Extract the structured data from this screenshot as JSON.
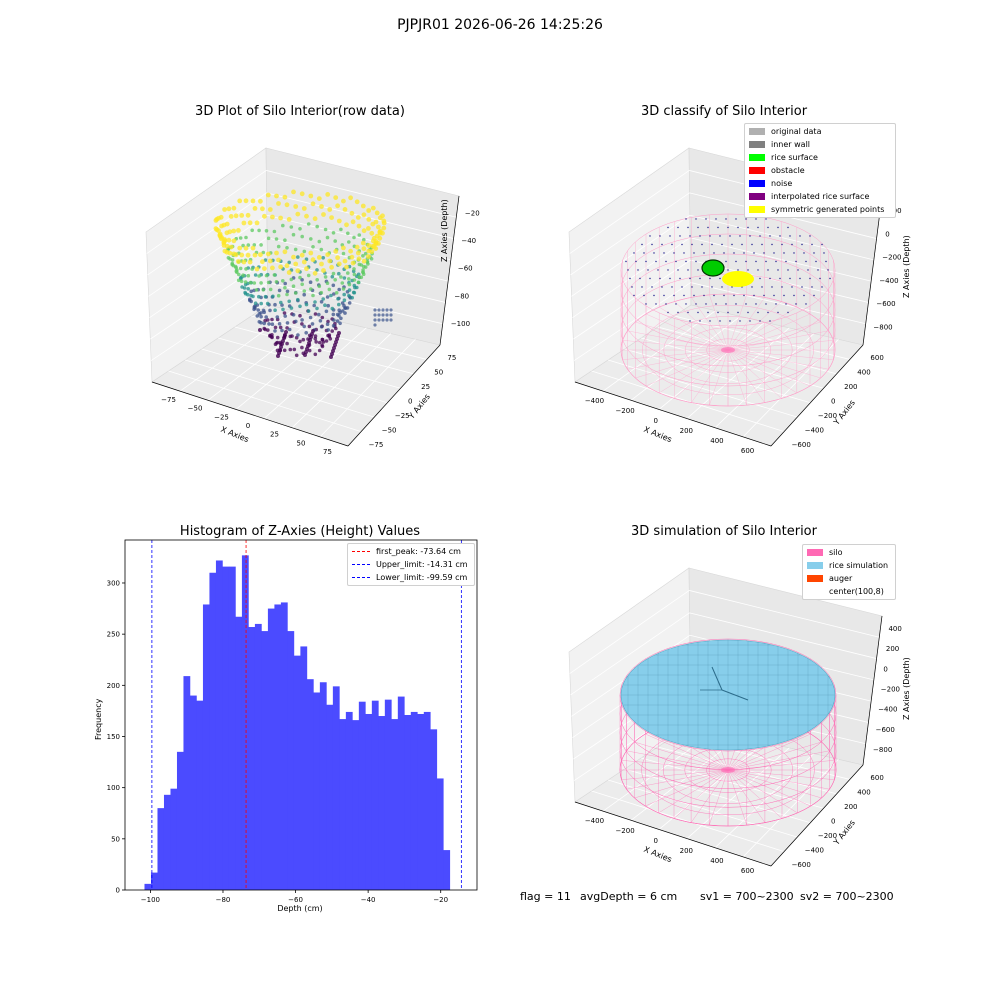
{
  "suptitle": "PJPJR01 2026-06-26 14:25:26",
  "footer": {
    "flag": "flag = 11",
    "avg_depth": "avgDepth = 6 cm",
    "sv1": "sv1 = 700~2300",
    "sv2": "sv2 = 700~2300"
  },
  "colors": {
    "hist_bar": "#4b4bff",
    "first_peak": "#ff0000",
    "limits": "#0000ff",
    "silo": "#ff69b4",
    "rice": "#87ceeb",
    "auger": "#ff4500",
    "cube_face": "#f2f2f2"
  },
  "chart_data": [
    {
      "type": "scatter",
      "projection": "3d",
      "title": "3D Plot of Silo Interior(row data)",
      "xlabel": "X Axies",
      "ylabel": "Y Axies",
      "zlabel": "Z Axies (Depth)",
      "x_ticks": [
        "−75",
        "−50",
        "−25",
        "0",
        "25",
        "50",
        "75"
      ],
      "y_ticks": [
        "−75",
        "−50",
        "−25",
        "0",
        "25",
        "50",
        "75"
      ],
      "z_ticks": [
        "−20",
        "−40",
        "−60",
        "−80",
        "−100"
      ],
      "colormap": "viridis",
      "description_points": "bowl-shaped point cloud, depth from about -105 to -15"
    },
    {
      "type": "scatter",
      "projection": "3d",
      "title": "3D classify of Silo Interior",
      "xlabel": "X Axies",
      "ylabel": "Y Axies",
      "zlabel": "Z Axies (Depth)",
      "x_ticks": [
        "−400",
        "−200",
        "0",
        "200",
        "400",
        "600"
      ],
      "y_ticks": [
        "−600",
        "−400",
        "−200",
        "0",
        "200",
        "400",
        "600"
      ],
      "z_ticks": [
        "200",
        "0",
        "−200",
        "−400",
        "−600",
        "−800"
      ],
      "legend": [
        {
          "label": "original data",
          "color": "#b0b0b0"
        },
        {
          "label": "inner wall",
          "color": "#808080"
        },
        {
          "label": "rice surface",
          "color": "#00ff00"
        },
        {
          "label": "obstacle",
          "color": "#ff0000"
        },
        {
          "label": "noise",
          "color": "#0000ff"
        },
        {
          "label": "interpolated rice surface",
          "color": "#800080"
        },
        {
          "label": "symmetric generated points",
          "color": "#ffff00"
        }
      ]
    },
    {
      "type": "bar",
      "title": "Histogram of Z-Axies (Height) Values",
      "xlabel": "Depth (cm)",
      "ylabel": "Frequency",
      "xlim": [
        -107,
        -10
      ],
      "ylim": [
        0,
        342
      ],
      "x_ticks": [
        -100,
        -80,
        -60,
        -40,
        -20
      ],
      "x_tick_labels": [
        "−100",
        "−80",
        "−60",
        "−40",
        "−20"
      ],
      "y_ticks": [
        0,
        50,
        100,
        150,
        200,
        250,
        300
      ],
      "bin_start": -101.63,
      "bin_width": 1.79,
      "values": [
        6,
        17,
        80,
        93,
        99,
        135,
        209,
        190,
        185,
        279,
        310,
        322,
        316,
        316,
        267,
        327,
        257,
        260,
        253,
        275,
        279,
        281,
        253,
        229,
        238,
        206,
        193,
        203,
        181,
        199,
        167,
        174,
        166,
        184,
        172,
        185,
        170,
        186,
        167,
        189,
        171,
        174,
        172,
        174,
        157,
        109,
        39
      ],
      "lines": [
        {
          "label": "first_peak: -73.64 cm",
          "x": -73.64,
          "color": "#ff0000"
        },
        {
          "label": "Upper_limit: -14.31 cm",
          "x": -14.31,
          "color": "#0000ff"
        },
        {
          "label": "Lower_limit: -99.59 cm",
          "x": -99.59,
          "color": "#0000ff"
        }
      ]
    },
    {
      "type": "scatter",
      "projection": "3d",
      "title": "3D simulation of Silo Interior",
      "xlabel": "X Axies",
      "ylabel": "Y Axies",
      "zlabel": "Z Axies (Depth)",
      "x_ticks": [
        "−400",
        "−200",
        "0",
        "200",
        "400",
        "600"
      ],
      "y_ticks": [
        "−600",
        "−400",
        "−200",
        "0",
        "200",
        "400",
        "600"
      ],
      "z_ticks": [
        "400",
        "200",
        "0",
        "−200",
        "−400",
        "−600",
        "−800"
      ],
      "legend": [
        {
          "label": "silo",
          "color": "#ff69b4"
        },
        {
          "label": "rice simulation",
          "color": "#87ceeb"
        },
        {
          "label": "auger",
          "color": "#ff4500"
        },
        {
          "label": "center(100,8)",
          "color": ""
        }
      ]
    }
  ]
}
